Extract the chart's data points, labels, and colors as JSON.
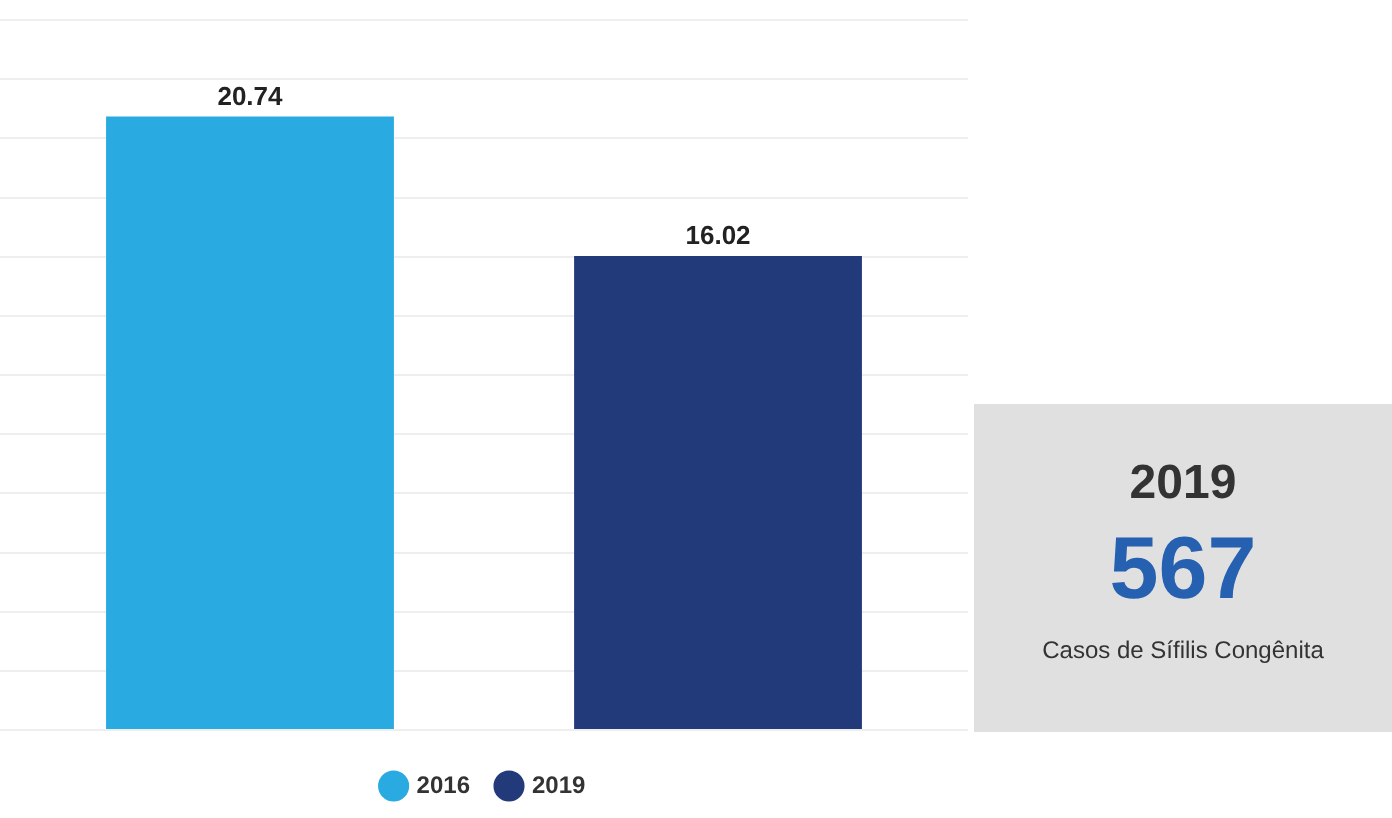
{
  "chart_data": [
    {
      "type": "bar",
      "categories": [
        null
      ],
      "series": [
        {
          "name": "2016",
          "color": "#29abe2",
          "values": [
            20.74
          ]
        },
        {
          "name": "2019",
          "color": "#233a7a",
          "values": [
            16.02
          ]
        }
      ],
      "ylim": [
        0,
        24
      ],
      "yticks": [
        {
          "value": 0,
          "label": null
        },
        {
          "value": 2,
          "label": null
        },
        {
          "value": 4,
          "label": null
        },
        {
          "value": 6,
          "label": null
        },
        {
          "value": 8,
          "label": null
        },
        {
          "value": 10,
          "label": null
        },
        {
          "value": 12,
          "label": null
        },
        {
          "value": 14,
          "label": null
        },
        {
          "value": 16,
          "label": null
        },
        {
          "value": 18,
          "label": null
        },
        {
          "value": 20,
          "label": null
        },
        {
          "value": 22,
          "label": null
        },
        {
          "value": 24,
          "label": null
        }
      ],
      "tick_labels": false,
      "grid": "y",
      "legend": "bottom",
      "data_labels": true
    },
    {
      "type": "other",
      "title": "2019",
      "subtitle": "567",
      "annotations": [
        "Casos de Sífilis Congênita"
      ]
    }
  ]
}
